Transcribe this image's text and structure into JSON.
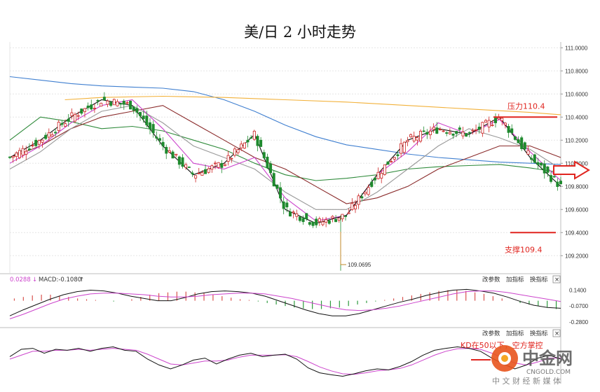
{
  "title": "美/日 2 小时走势",
  "chart_data": {
    "type": "candlestick",
    "title": "美/日 2 小时走势",
    "price_ticks": [
      "111.0000",
      "110.8000",
      "110.6000",
      "110.4000",
      "110.2000",
      "110.0000",
      "109.8000",
      "109.6000",
      "109.4000",
      "109.2000"
    ],
    "ylim": [
      109.05,
      111.05
    ],
    "low_marker": "109.0695",
    "resistance": {
      "label": "压力110.4",
      "value": 110.4
    },
    "support": {
      "label": "支撑109.4",
      "value": 109.4
    },
    "arrow": "right",
    "lines": [
      {
        "color": "#3f7fd0",
        "points": [
          [
            0,
            110.75
          ],
          [
            10,
            110.72
          ],
          [
            20,
            110.69
          ],
          [
            30,
            110.67
          ],
          [
            40,
            110.66
          ],
          [
            50,
            110.65
          ],
          [
            60,
            110.62
          ],
          [
            70,
            110.55
          ],
          [
            80,
            110.45
          ],
          [
            90,
            110.33
          ],
          [
            100,
            110.23
          ],
          [
            110,
            110.16
          ],
          [
            120,
            110.12
          ],
          [
            130,
            110.08
          ],
          [
            140,
            110.05
          ],
          [
            150,
            110.03
          ],
          [
            160,
            110.01
          ],
          [
            170,
            110.0
          ],
          [
            180,
            109.99
          ]
        ]
      },
      {
        "color": "#f2b13a",
        "points": [
          [
            18,
            110.55
          ],
          [
            30,
            110.57
          ],
          [
            50,
            110.58
          ],
          [
            70,
            110.57
          ],
          [
            90,
            110.55
          ],
          [
            110,
            110.53
          ],
          [
            130,
            110.5
          ],
          [
            150,
            110.47
          ],
          [
            170,
            110.44
          ],
          [
            180,
            110.42
          ]
        ]
      },
      {
        "color": "#2e8a3a",
        "points": [
          [
            0,
            110.2
          ],
          [
            10,
            110.4
          ],
          [
            20,
            110.36
          ],
          [
            30,
            110.3
          ],
          [
            40,
            110.32
          ],
          [
            50,
            110.28
          ],
          [
            60,
            110.2
          ],
          [
            70,
            110.12
          ],
          [
            80,
            110.0
          ],
          [
            90,
            109.9
          ],
          [
            100,
            109.85
          ],
          [
            110,
            109.87
          ],
          [
            120,
            109.9
          ],
          [
            130,
            109.95
          ],
          [
            140,
            109.97
          ],
          [
            150,
            109.98
          ],
          [
            160,
            109.99
          ],
          [
            170,
            109.96
          ],
          [
            180,
            109.92
          ]
        ]
      },
      {
        "color": "#8a2a2a",
        "points": [
          [
            0,
            110.05
          ],
          [
            10,
            110.15
          ],
          [
            20,
            110.3
          ],
          [
            30,
            110.4
          ],
          [
            40,
            110.45
          ],
          [
            50,
            110.5
          ],
          [
            60,
            110.35
          ],
          [
            70,
            110.2
          ],
          [
            80,
            110.05
          ],
          [
            90,
            109.95
          ],
          [
            100,
            109.8
          ],
          [
            110,
            109.65
          ],
          [
            120,
            109.7
          ],
          [
            130,
            109.8
          ],
          [
            140,
            109.95
          ],
          [
            150,
            110.05
          ],
          [
            160,
            110.15
          ],
          [
            170,
            110.15
          ],
          [
            180,
            110.05
          ]
        ]
      },
      {
        "color": "#999999",
        "points": [
          [
            0,
            109.95
          ],
          [
            10,
            110.1
          ],
          [
            20,
            110.3
          ],
          [
            30,
            110.45
          ],
          [
            40,
            110.5
          ],
          [
            50,
            110.35
          ],
          [
            60,
            110.15
          ],
          [
            70,
            110.05
          ],
          [
            80,
            109.95
          ],
          [
            90,
            109.75
          ],
          [
            100,
            109.6
          ],
          [
            110,
            109.6
          ],
          [
            120,
            109.75
          ],
          [
            130,
            109.95
          ],
          [
            140,
            110.15
          ],
          [
            150,
            110.3
          ],
          [
            160,
            110.22
          ],
          [
            170,
            110.12
          ],
          [
            180,
            109.95
          ]
        ]
      },
      {
        "color": "#cc44cc",
        "points": [
          [
            0,
            110.0
          ],
          [
            10,
            110.15
          ],
          [
            20,
            110.35
          ],
          [
            30,
            110.5
          ],
          [
            40,
            110.55
          ],
          [
            50,
            110.3
          ],
          [
            60,
            110.0
          ],
          [
            70,
            109.95
          ],
          [
            80,
            110.05
          ],
          [
            90,
            109.7
          ],
          [
            100,
            109.5
          ],
          [
            110,
            109.55
          ],
          [
            120,
            109.9
          ],
          [
            130,
            110.1
          ],
          [
            140,
            110.35
          ],
          [
            150,
            110.25
          ],
          [
            160,
            110.38
          ],
          [
            170,
            110.1
          ],
          [
            180,
            109.85
          ]
        ]
      },
      {
        "color": "#111111",
        "points": [
          [
            0,
            110.05
          ],
          [
            10,
            110.2
          ],
          [
            20,
            110.4
          ],
          [
            30,
            110.55
          ],
          [
            40,
            110.5
          ],
          [
            50,
            110.15
          ],
          [
            60,
            109.9
          ],
          [
            70,
            110.0
          ],
          [
            80,
            110.25
          ],
          [
            90,
            109.6
          ],
          [
            100,
            109.48
          ],
          [
            110,
            109.55
          ],
          [
            120,
            109.9
          ],
          [
            130,
            110.2
          ],
          [
            140,
            110.3
          ],
          [
            150,
            110.25
          ],
          [
            160,
            110.4
          ],
          [
            170,
            110.05
          ],
          [
            180,
            109.8
          ]
        ]
      }
    ],
    "macd": {
      "label": "MACD:-0.1080",
      "dif_label": "0.0288",
      "ticks": [
        "0.1400",
        "-0.0700",
        "-0.2800"
      ],
      "ylim": [
        -0.3,
        0.2
      ],
      "hist": [
        0.03,
        0.05,
        0.07,
        0.08,
        0.08,
        0.06,
        0.05,
        0.03,
        0.02,
        0.01,
        0.0,
        -0.01,
        0.0,
        0.02,
        0.05,
        0.08,
        0.1,
        0.11,
        0.12,
        0.12,
        0.11,
        0.1,
        0.08,
        0.06,
        0.04,
        0.02,
        0.01,
        -0.01,
        -0.03,
        -0.05,
        -0.07,
        -0.09,
        -0.1,
        -0.11,
        -0.11,
        -0.1,
        -0.09,
        -0.07,
        -0.05,
        -0.03,
        -0.01,
        0.01,
        0.03,
        0.05,
        0.07,
        0.09,
        0.11,
        0.13,
        0.14,
        0.14,
        0.13,
        0.11,
        0.09,
        0.06,
        0.03,
        0.0,
        -0.03,
        -0.05,
        -0.07,
        -0.09,
        -0.11
      ],
      "dif": [
        -0.2,
        -0.12,
        -0.05,
        0.02,
        0.08,
        0.12,
        0.14,
        0.13,
        0.1,
        0.06,
        0.03,
        0.0,
        0.0,
        0.04,
        0.09,
        0.12,
        0.13,
        0.12,
        0.1,
        0.06,
        0.0,
        -0.06,
        -0.12,
        -0.17,
        -0.2,
        -0.2,
        -0.17,
        -0.12,
        -0.07,
        -0.02,
        0.02,
        0.07,
        0.11,
        0.14,
        0.15,
        0.13,
        0.1,
        0.05,
        -0.01,
        -0.06,
        -0.09,
        -0.1
      ],
      "dea": [
        -0.24,
        -0.18,
        -0.11,
        -0.04,
        0.02,
        0.06,
        0.09,
        0.1,
        0.1,
        0.09,
        0.08,
        0.06,
        0.05,
        0.05,
        0.06,
        0.08,
        0.09,
        0.1,
        0.1,
        0.09,
        0.06,
        0.03,
        -0.01,
        -0.05,
        -0.09,
        -0.12,
        -0.13,
        -0.12,
        -0.1,
        -0.07,
        -0.03,
        0.01,
        0.05,
        0.09,
        0.12,
        0.13,
        0.13,
        0.11,
        0.08,
        0.05,
        0.02,
        -0.01
      ]
    },
    "kd": {
      "annotation": "KD在50以下，空方掌控",
      "k": [
        55,
        70,
        72,
        62,
        70,
        68,
        72,
        66,
        72,
        75,
        68,
        66,
        50,
        38,
        30,
        38,
        48,
        52,
        40,
        50,
        58,
        62,
        55,
        58,
        60,
        50,
        32,
        22,
        18,
        15,
        20,
        26,
        30,
        28,
        35,
        45,
        58,
        68,
        72,
        75,
        72,
        66,
        52,
        40,
        30,
        38,
        52,
        58,
        50
      ],
      "d": [
        50,
        58,
        66,
        66,
        68,
        68,
        70,
        68,
        70,
        72,
        70,
        68,
        60,
        50,
        40,
        38,
        42,
        46,
        46,
        48,
        54,
        58,
        58,
        58,
        59,
        55,
        45,
        34,
        26,
        20,
        19,
        22,
        26,
        28,
        31,
        38,
        48,
        58,
        66,
        71,
        72,
        70,
        62,
        52,
        42,
        38,
        44,
        52,
        52
      ]
    }
  },
  "panel": {
    "settings": "改参数",
    "add_indicator": "加指标",
    "change_indicator": "换指标",
    "close": "×"
  },
  "watermark": {
    "logo_text": "中金网",
    "domain": "CNGOLD.COM",
    "tagline": "中 文 财 经 新 媒 体"
  }
}
